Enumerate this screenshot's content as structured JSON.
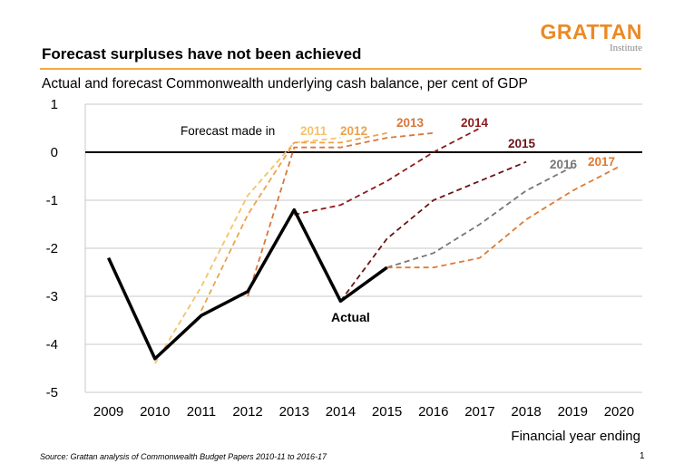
{
  "slide": {
    "title": "Forecast surpluses have not been achieved",
    "subtitle": "Actual and forecast Commonwealth underlying cash balance, per cent of GDP",
    "logo_main": "GRATTAN",
    "logo_sub": "Institute",
    "source": "Source: Grattan analysis of Commonwealth Budget Papers 2010-11 to 2016-17",
    "page_number": "1",
    "brand_color": "#eb8a24"
  },
  "chart_data": {
    "type": "line",
    "title": "Forecast surpluses have not been achieved",
    "subtitle": "Actual and forecast Commonwealth underlying cash balance, per cent of GDP",
    "xlabel": "Financial year ending",
    "ylabel": "",
    "ylim": [
      -5,
      1
    ],
    "yticks": [
      1,
      0,
      -1,
      -2,
      -3,
      -4,
      -5
    ],
    "categories": [
      "2009",
      "2010",
      "2011",
      "2012",
      "2013",
      "2014",
      "2015",
      "2016",
      "2017",
      "2018",
      "2019",
      "2020"
    ],
    "grid": true,
    "forecast_prefix": "Forecast made in",
    "actual_label": "Actual",
    "series": [
      {
        "name": "Actual",
        "style": "solid",
        "color": "#000000",
        "points": [
          [
            2009,
            -2.2
          ],
          [
            2010,
            -4.3
          ],
          [
            2011,
            -3.4
          ],
          [
            2012,
            -2.9
          ],
          [
            2013,
            -1.2
          ],
          [
            2014,
            -3.1
          ],
          [
            2015,
            -2.4
          ]
        ]
      },
      {
        "name": "2011",
        "style": "dashed",
        "color": "#f5c26b",
        "points": [
          [
            2010,
            -4.4
          ],
          [
            2011,
            -2.8
          ],
          [
            2012,
            -0.9
          ],
          [
            2013,
            0.2
          ],
          [
            2014,
            0.3
          ]
        ]
      },
      {
        "name": "2012",
        "style": "dashed",
        "color": "#eda24a",
        "points": [
          [
            2011,
            -3.3
          ],
          [
            2012,
            -1.3
          ],
          [
            2013,
            0.2
          ],
          [
            2014,
            0.2
          ],
          [
            2015,
            0.4
          ]
        ]
      },
      {
        "name": "2013",
        "style": "dashed",
        "color": "#d8773a",
        "points": [
          [
            2012,
            -3.0
          ],
          [
            2013,
            0.1
          ],
          [
            2014,
            0.1
          ],
          [
            2015,
            0.3
          ],
          [
            2016,
            0.4
          ]
        ]
      },
      {
        "name": "2014",
        "style": "dashed",
        "color": "#8e1b1b",
        "points": [
          [
            2013,
            -1.3
          ],
          [
            2014,
            -1.1
          ],
          [
            2015,
            -0.6
          ],
          [
            2016,
            0.0
          ],
          [
            2017,
            0.5
          ]
        ]
      },
      {
        "name": "2015",
        "style": "dashed",
        "color": "#6a1414",
        "points": [
          [
            2014,
            -3.1
          ],
          [
            2015,
            -1.8
          ],
          [
            2016,
            -1.0
          ],
          [
            2017,
            -0.6
          ],
          [
            2018,
            -0.2
          ]
        ]
      },
      {
        "name": "2016",
        "style": "dashed",
        "color": "#777777",
        "points": [
          [
            2015,
            -2.4
          ],
          [
            2016,
            -2.1
          ],
          [
            2017,
            -1.5
          ],
          [
            2018,
            -0.8
          ],
          [
            2019,
            -0.3
          ]
        ]
      },
      {
        "name": "2017",
        "style": "dashed",
        "color": "#e07a32",
        "points": [
          [
            2015,
            -2.4
          ],
          [
            2016,
            -2.4
          ],
          [
            2017,
            -2.2
          ],
          [
            2018,
            -1.4
          ],
          [
            2019,
            -0.8
          ],
          [
            2020,
            -0.3
          ]
        ]
      }
    ]
  }
}
